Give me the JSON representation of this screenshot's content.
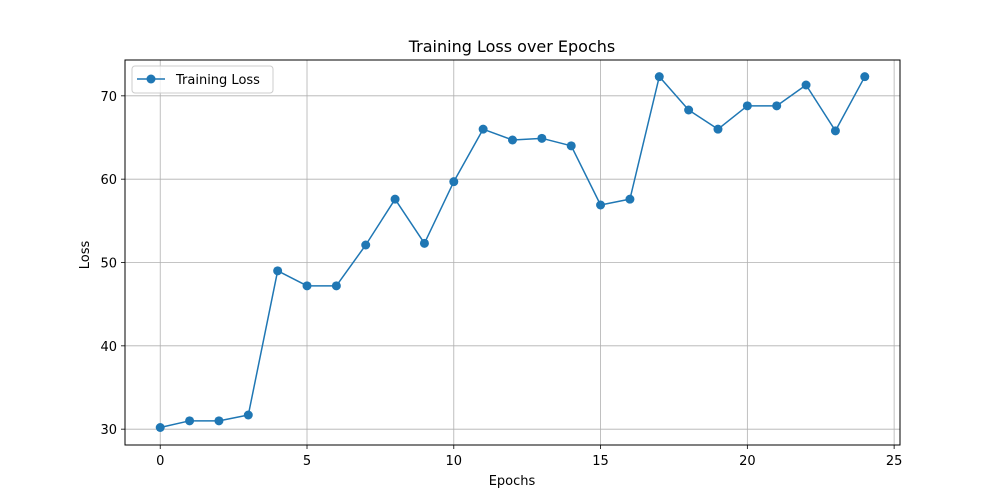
{
  "chart_data": {
    "type": "line",
    "title": "Training Loss over Epochs",
    "xlabel": "Epochs",
    "ylabel": "Loss",
    "xlim": [
      -1.2,
      25.2
    ],
    "ylim": [
      28.1,
      74.3
    ],
    "x_ticks": [
      0,
      5,
      10,
      15,
      20,
      25
    ],
    "y_ticks": [
      30,
      40,
      50,
      60,
      70
    ],
    "grid": true,
    "legend_position": "upper-left",
    "series": [
      {
        "name": "Training Loss",
        "color": "#1f77b4",
        "marker": "circle",
        "x": [
          0,
          1,
          2,
          3,
          4,
          5,
          6,
          7,
          8,
          9,
          10,
          11,
          12,
          13,
          14,
          15,
          16,
          17,
          18,
          19,
          20,
          21,
          22,
          23,
          24
        ],
        "y": [
          30.2,
          31.0,
          31.0,
          31.7,
          49.0,
          47.2,
          47.2,
          52.1,
          57.6,
          52.3,
          59.7,
          66.0,
          64.7,
          64.9,
          64.0,
          56.9,
          57.6,
          72.3,
          68.3,
          66.0,
          68.8,
          68.8,
          71.3,
          65.8,
          72.3
        ]
      }
    ]
  }
}
